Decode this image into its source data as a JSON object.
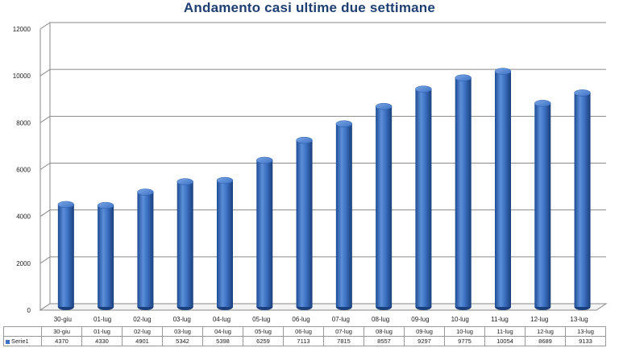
{
  "chart_data": {
    "type": "bar",
    "title": "Andamento casi ultime due settimane",
    "categories": [
      "30-giu",
      "01-lug",
      "02-lug",
      "03-lug",
      "04-lug",
      "05-lug",
      "06-lug",
      "07-lug",
      "08-lug",
      "09-lug",
      "10-lug",
      "11-lug",
      "12-lug",
      "13-lug"
    ],
    "series": [
      {
        "name": "Serie1",
        "values": [
          4370,
          4330,
          4901,
          5342,
          5398,
          6259,
          7113,
          7815,
          8557,
          9297,
          9775,
          10054,
          8689,
          9133
        ]
      }
    ],
    "y_ticks": [
      "0",
      "2000",
      "4000",
      "6000",
      "8000",
      "10000",
      "12000"
    ],
    "ylim": [
      0,
      12000
    ],
    "grid": true,
    "bar_style": "3d-cylinder",
    "legend": "data-table-below",
    "colors": {
      "bar": "#3d72c4",
      "bar_dark": "#1e4c94",
      "title": "#1f3f73"
    }
  }
}
